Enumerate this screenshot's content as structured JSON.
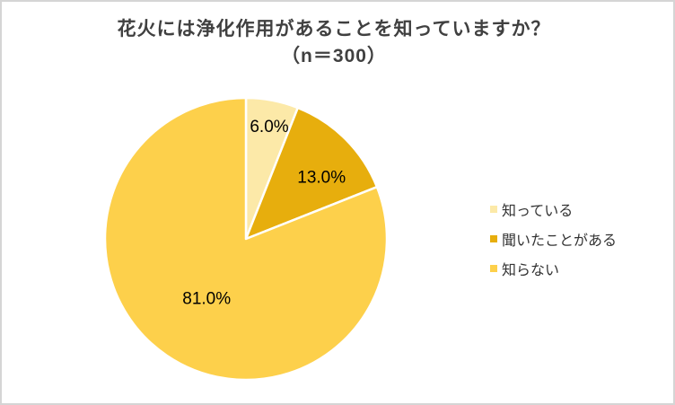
{
  "figure": {
    "background": "#FFFFFF",
    "border_color": "#D5D5D5"
  },
  "chart_data": {
    "type": "pie",
    "title": "花火には浄化作用があることを知っていますか？",
    "subtitle": "（n＝300）",
    "n": 300,
    "start_angle_deg": 0,
    "direction": "clockwise",
    "legend_position": "right",
    "title_color": "#404040",
    "label_color": "#000000",
    "slice_border_color": "#FFFFFF",
    "slices": [
      {
        "label": "知っている",
        "value": 6.0,
        "display": "6.0%",
        "color": "#FCE9A8"
      },
      {
        "label": "聞いたことがある",
        "value": 13.0,
        "display": "13.0%",
        "color": "#E7AE0D"
      },
      {
        "label": "知らない",
        "value": 81.0,
        "display": "81.0%",
        "color": "#FDD04B"
      }
    ]
  }
}
